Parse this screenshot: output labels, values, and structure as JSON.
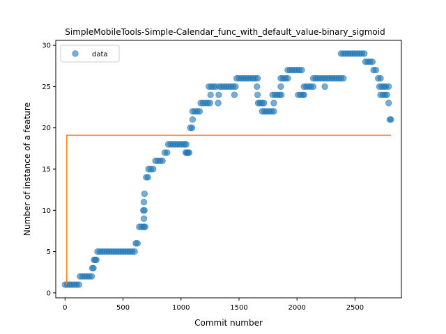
{
  "chart_data": {
    "type": "scatter",
    "title": "SimpleMobileTools-Simple-Calendar_func_with_default_value-binary_sigmoid",
    "xlabel": "Commit number",
    "ylabel": "Number of instance of a feature",
    "xlim": [
      -80,
      2900
    ],
    "ylim": [
      -0.6,
      30.6
    ],
    "xticks": [
      0,
      500,
      1000,
      1500,
      2000,
      2500
    ],
    "yticks": [
      0,
      5,
      10,
      15,
      20,
      25,
      30
    ],
    "grid": false,
    "legend": {
      "placement": "upper-left",
      "entries": [
        "data"
      ]
    },
    "colors": {
      "data": "#1f77b4",
      "fit": "#ff7f0e"
    },
    "series": [
      {
        "name": "data",
        "kind": "scatter",
        "points": [
          [
            0,
            1
          ],
          [
            20,
            1
          ],
          [
            40,
            1
          ],
          [
            60,
            1
          ],
          [
            80,
            1
          ],
          [
            100,
            1
          ],
          [
            120,
            1
          ],
          [
            130,
            2
          ],
          [
            150,
            2
          ],
          [
            170,
            2
          ],
          [
            190,
            2
          ],
          [
            210,
            2
          ],
          [
            230,
            2
          ],
          [
            235,
            3
          ],
          [
            245,
            3
          ],
          [
            250,
            4
          ],
          [
            260,
            4
          ],
          [
            270,
            4
          ],
          [
            280,
            5
          ],
          [
            300,
            5
          ],
          [
            320,
            5
          ],
          [
            340,
            5
          ],
          [
            360,
            5
          ],
          [
            380,
            5
          ],
          [
            400,
            5
          ],
          [
            420,
            5
          ],
          [
            440,
            5
          ],
          [
            460,
            5
          ],
          [
            480,
            5
          ],
          [
            500,
            5
          ],
          [
            520,
            5
          ],
          [
            540,
            5
          ],
          [
            560,
            5
          ],
          [
            580,
            5
          ],
          [
            600,
            5
          ],
          [
            610,
            6
          ],
          [
            625,
            6
          ],
          [
            640,
            8
          ],
          [
            660,
            8
          ],
          [
            680,
            8
          ],
          [
            690,
            8
          ],
          [
            680,
            9
          ],
          [
            675,
            10
          ],
          [
            685,
            10
          ],
          [
            680,
            11
          ],
          [
            685,
            12
          ],
          [
            700,
            14
          ],
          [
            715,
            14
          ],
          [
            720,
            15
          ],
          [
            740,
            15
          ],
          [
            760,
            15
          ],
          [
            780,
            16
          ],
          [
            800,
            16
          ],
          [
            820,
            16
          ],
          [
            840,
            16
          ],
          [
            860,
            17
          ],
          [
            880,
            17
          ],
          [
            890,
            18
          ],
          [
            910,
            18
          ],
          [
            930,
            18
          ],
          [
            950,
            18
          ],
          [
            970,
            18
          ],
          [
            990,
            18
          ],
          [
            1010,
            18
          ],
          [
            1030,
            18
          ],
          [
            1045,
            18
          ],
          [
            1040,
            17
          ],
          [
            1050,
            17
          ],
          [
            1060,
            17
          ],
          [
            1070,
            17
          ],
          [
            1080,
            20
          ],
          [
            1095,
            20
          ],
          [
            1100,
            21
          ],
          [
            1100,
            22
          ],
          [
            1120,
            22
          ],
          [
            1140,
            22
          ],
          [
            1160,
            22
          ],
          [
            1170,
            23
          ],
          [
            1190,
            23
          ],
          [
            1210,
            23
          ],
          [
            1230,
            23
          ],
          [
            1250,
            23
          ],
          [
            1255,
            24
          ],
          [
            1240,
            25
          ],
          [
            1260,
            25
          ],
          [
            1280,
            25
          ],
          [
            1300,
            25
          ],
          [
            1320,
            23
          ],
          [
            1325,
            24
          ],
          [
            1330,
            25
          ],
          [
            1350,
            25
          ],
          [
            1370,
            25
          ],
          [
            1390,
            25
          ],
          [
            1410,
            25
          ],
          [
            1430,
            25
          ],
          [
            1450,
            25
          ],
          [
            1470,
            25
          ],
          [
            1460,
            24
          ],
          [
            1480,
            26
          ],
          [
            1500,
            26
          ],
          [
            1520,
            26
          ],
          [
            1540,
            26
          ],
          [
            1560,
            26
          ],
          [
            1580,
            26
          ],
          [
            1600,
            26
          ],
          [
            1620,
            26
          ],
          [
            1640,
            26
          ],
          [
            1660,
            26
          ],
          [
            1655,
            25
          ],
          [
            1660,
            24
          ],
          [
            1665,
            23
          ],
          [
            1680,
            23
          ],
          [
            1700,
            23
          ],
          [
            1715,
            23
          ],
          [
            1700,
            22
          ],
          [
            1720,
            22
          ],
          [
            1740,
            22
          ],
          [
            1760,
            22
          ],
          [
            1780,
            22
          ],
          [
            1800,
            22
          ],
          [
            1800,
            23
          ],
          [
            1790,
            24
          ],
          [
            1810,
            24
          ],
          [
            1830,
            24
          ],
          [
            1850,
            24
          ],
          [
            1865,
            24
          ],
          [
            1860,
            25
          ],
          [
            1860,
            26
          ],
          [
            1880,
            26
          ],
          [
            1900,
            26
          ],
          [
            1920,
            26
          ],
          [
            1920,
            27
          ],
          [
            1940,
            27
          ],
          [
            1960,
            27
          ],
          [
            1980,
            27
          ],
          [
            2000,
            27
          ],
          [
            2020,
            27
          ],
          [
            2040,
            27
          ],
          [
            2010,
            24
          ],
          [
            2030,
            24
          ],
          [
            2050,
            24
          ],
          [
            2060,
            24
          ],
          [
            2060,
            25
          ],
          [
            2080,
            25
          ],
          [
            2100,
            25
          ],
          [
            2120,
            25
          ],
          [
            2140,
            25
          ],
          [
            2140,
            26
          ],
          [
            2160,
            26
          ],
          [
            2180,
            26
          ],
          [
            2200,
            26
          ],
          [
            2220,
            26
          ],
          [
            2240,
            26
          ],
          [
            2260,
            26
          ],
          [
            2280,
            26
          ],
          [
            2300,
            26
          ],
          [
            2320,
            26
          ],
          [
            2340,
            26
          ],
          [
            2360,
            26
          ],
          [
            2380,
            26
          ],
          [
            2400,
            26
          ],
          [
            2240,
            25
          ],
          [
            2380,
            29
          ],
          [
            2400,
            29
          ],
          [
            2420,
            29
          ],
          [
            2440,
            29
          ],
          [
            2460,
            29
          ],
          [
            2480,
            29
          ],
          [
            2500,
            29
          ],
          [
            2520,
            29
          ],
          [
            2540,
            29
          ],
          [
            2560,
            29
          ],
          [
            2580,
            29
          ],
          [
            2590,
            28
          ],
          [
            2610,
            28
          ],
          [
            2630,
            28
          ],
          [
            2650,
            28
          ],
          [
            2660,
            27
          ],
          [
            2680,
            27
          ],
          [
            2700,
            26
          ],
          [
            2720,
            26
          ],
          [
            2710,
            25
          ],
          [
            2730,
            25
          ],
          [
            2750,
            25
          ],
          [
            2765,
            25
          ],
          [
            2790,
            25
          ],
          [
            2720,
            24
          ],
          [
            2740,
            24
          ],
          [
            2760,
            24
          ],
          [
            2775,
            24
          ],
          [
            2790,
            23
          ],
          [
            2800,
            21
          ],
          [
            2810,
            21
          ]
        ]
      },
      {
        "name": "",
        "kind": "line",
        "points": [
          [
            15,
            1
          ],
          [
            15,
            19.1
          ],
          [
            2810,
            19.1
          ]
        ]
      }
    ]
  }
}
